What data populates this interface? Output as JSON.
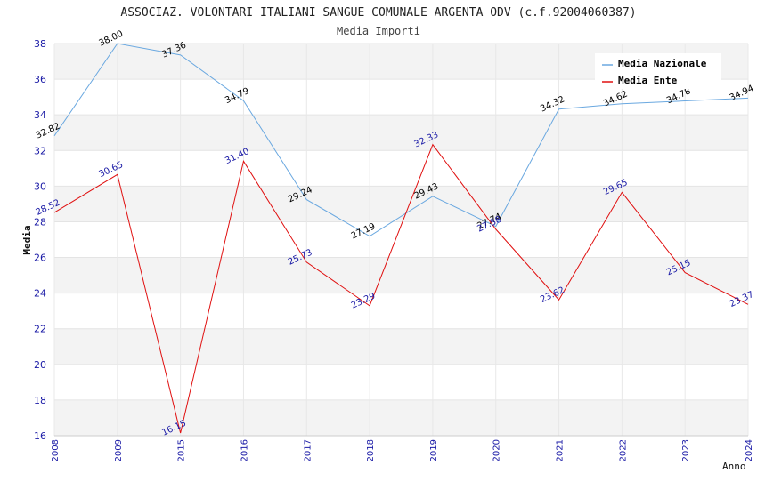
{
  "chart_data": {
    "type": "line",
    "title": "ASSOCIAZ. VOLONTARI ITALIANI SANGUE COMUNALE ARGENTA ODV (c.f.92004060387)",
    "subtitle": "Media Importi",
    "xlabel": "Anno",
    "ylabel": "Media",
    "ylim": [
      16,
      38
    ],
    "yticks": [
      16,
      18,
      20,
      22,
      24,
      26,
      28,
      30,
      32,
      34,
      36,
      38
    ],
    "categories": [
      "2008",
      "2009",
      "2015",
      "2016",
      "2017",
      "2018",
      "2019",
      "2020",
      "2021",
      "2022",
      "2023",
      "2024"
    ],
    "legend_position": "top-right",
    "grid": true,
    "series": [
      {
        "name": "Media Nazionale",
        "color": "#6aa8e0",
        "label_color": "#000000",
        "values": [
          32.82,
          38.0,
          37.36,
          34.79,
          29.24,
          27.19,
          29.43,
          27.74,
          34.32,
          34.62,
          34.78,
          34.94
        ],
        "labels": [
          "32.82",
          "38.00",
          "37.36",
          "34.79",
          "29.24",
          "27.19",
          "29.43",
          "27.74",
          "34.32",
          "34.62",
          "34.78",
          "34.94"
        ]
      },
      {
        "name": "Media Ente",
        "color": "#e01010",
        "label_color": "#1a1aa6",
        "values": [
          28.52,
          30.65,
          16.15,
          31.4,
          25.73,
          23.29,
          32.33,
          27.58,
          23.62,
          29.65,
          25.15,
          23.37
        ],
        "labels": [
          "28.52",
          "30.65",
          "16.15",
          "31.40",
          "25.73",
          "23.29",
          "32.33",
          "27.58",
          "23.62",
          "29.65",
          "25.15",
          "23.37"
        ]
      }
    ]
  }
}
